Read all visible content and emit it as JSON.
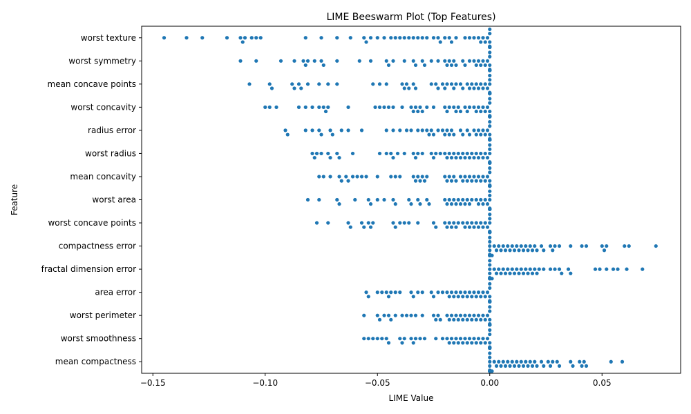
{
  "chart_data": {
    "type": "scatter",
    "subtype": "beeswarm",
    "title": "LIME Beeswarm Plot (Top Features)",
    "xlabel": "LIME Value",
    "ylabel": "Feature",
    "xlim": [
      -0.155,
      0.085
    ],
    "xticks": [
      -0.15,
      -0.1,
      -0.05,
      0.0,
      0.05
    ],
    "xtick_labels": [
      "−0.15",
      "−0.10",
      "−0.05",
      "0.00",
      "0.05"
    ],
    "grid": false,
    "legend": "none",
    "point_color": "#1f77b4",
    "categories": [
      "worst texture",
      "worst symmetry",
      "mean concave points",
      "worst concavity",
      "radius error",
      "worst radius",
      "mean concavity",
      "worst area",
      "worst concave points",
      "compactness error",
      "fractal dimension error",
      "area error",
      "worst perimeter",
      "worst smoothness",
      "mean compactness"
    ],
    "series": [
      {
        "feature": "worst texture",
        "values": [
          -0.145,
          -0.135,
          -0.128,
          -0.117,
          -0.111,
          -0.11,
          -0.109,
          -0.106,
          -0.104,
          -0.102,
          -0.082,
          -0.075,
          -0.068,
          -0.062,
          -0.056,
          -0.055,
          -0.053,
          -0.05,
          -0.047,
          -0.044,
          -0.042,
          -0.04,
          -0.038,
          -0.036,
          -0.034,
          -0.032,
          -0.03,
          -0.028,
          -0.025,
          -0.023,
          -0.022,
          -0.02,
          -0.018,
          -0.017,
          -0.015,
          -0.011,
          -0.009,
          -0.007,
          -0.005,
          -0.004,
          -0.003,
          -0.002,
          -0.001,
          0.0,
          0.0,
          0.0,
          0.0,
          0.0,
          0.0,
          0.0,
          0.0,
          0.0,
          0.0,
          0.0
        ]
      },
      {
        "feature": "worst symmetry",
        "values": [
          -0.111,
          -0.104,
          -0.093,
          -0.087,
          -0.083,
          -0.082,
          -0.081,
          -0.078,
          -0.075,
          -0.074,
          -0.068,
          -0.058,
          -0.053,
          -0.046,
          -0.045,
          -0.043,
          -0.038,
          -0.034,
          -0.033,
          -0.03,
          -0.029,
          -0.026,
          -0.023,
          -0.02,
          -0.019,
          -0.018,
          -0.017,
          -0.016,
          -0.015,
          -0.012,
          -0.011,
          -0.009,
          -0.007,
          -0.006,
          -0.005,
          -0.004,
          -0.003,
          -0.002,
          -0.001,
          0.0,
          0.0,
          0.0,
          0.0,
          0.0,
          0.0,
          0.0,
          0.0,
          0.0,
          0.0,
          0.0,
          0.0,
          0.0,
          0.0,
          0.0
        ]
      },
      {
        "feature": "mean concave points",
        "values": [
          -0.107,
          -0.098,
          -0.097,
          -0.088,
          -0.087,
          -0.085,
          -0.084,
          -0.081,
          -0.076,
          -0.072,
          -0.068,
          -0.052,
          -0.049,
          -0.046,
          -0.039,
          -0.038,
          -0.037,
          -0.036,
          -0.034,
          -0.033,
          -0.026,
          -0.024,
          -0.023,
          -0.021,
          -0.02,
          -0.019,
          -0.017,
          -0.016,
          -0.015,
          -0.013,
          -0.012,
          -0.01,
          -0.009,
          -0.008,
          -0.007,
          -0.006,
          -0.005,
          -0.004,
          -0.003,
          -0.002,
          -0.001,
          0.0,
          0.0,
          0.0,
          0.0,
          0.0,
          0.0,
          0.0,
          0.0,
          0.0,
          0.0,
          0.0,
          0.0,
          0.0
        ]
      },
      {
        "feature": "worst concavity",
        "values": [
          -0.1,
          -0.098,
          -0.095,
          -0.085,
          -0.082,
          -0.079,
          -0.076,
          -0.074,
          -0.073,
          -0.072,
          -0.063,
          -0.051,
          -0.049,
          -0.047,
          -0.045,
          -0.043,
          -0.039,
          -0.035,
          -0.034,
          -0.033,
          -0.032,
          -0.031,
          -0.03,
          -0.028,
          -0.025,
          -0.02,
          -0.019,
          -0.018,
          -0.016,
          -0.015,
          -0.014,
          -0.013,
          -0.011,
          -0.01,
          -0.009,
          -0.007,
          -0.006,
          -0.005,
          -0.004,
          -0.003,
          -0.002,
          -0.001,
          0.0,
          0.0,
          0.0,
          0.0,
          0.0,
          0.0,
          0.0,
          0.0,
          0.0,
          0.0,
          0.0,
          0.0
        ]
      },
      {
        "feature": "radius error",
        "values": [
          -0.091,
          -0.09,
          -0.082,
          -0.079,
          -0.076,
          -0.075,
          -0.071,
          -0.07,
          -0.066,
          -0.063,
          -0.057,
          -0.046,
          -0.043,
          -0.04,
          -0.037,
          -0.035,
          -0.032,
          -0.03,
          -0.028,
          -0.027,
          -0.026,
          -0.025,
          -0.023,
          -0.021,
          -0.02,
          -0.019,
          -0.018,
          -0.017,
          -0.016,
          -0.013,
          -0.012,
          -0.01,
          -0.009,
          -0.007,
          -0.006,
          -0.005,
          -0.004,
          -0.003,
          -0.002,
          -0.001,
          0.0,
          0.0,
          0.0,
          0.0,
          0.0,
          0.0,
          0.0,
          0.0,
          0.0,
          0.0,
          0.0,
          0.0,
          0.0,
          0.0
        ]
      },
      {
        "feature": "worst radius",
        "values": [
          -0.079,
          -0.078,
          -0.077,
          -0.075,
          -0.072,
          -0.071,
          -0.068,
          -0.067,
          -0.061,
          -0.049,
          -0.046,
          -0.044,
          -0.043,
          -0.041,
          -0.038,
          -0.034,
          -0.033,
          -0.032,
          -0.03,
          -0.026,
          -0.025,
          -0.024,
          -0.022,
          -0.02,
          -0.019,
          -0.018,
          -0.017,
          -0.016,
          -0.015,
          -0.014,
          -0.013,
          -0.012,
          -0.011,
          -0.01,
          -0.009,
          -0.008,
          -0.007,
          -0.006,
          -0.005,
          -0.004,
          -0.003,
          -0.002,
          -0.001,
          0.0,
          0.0,
          0.0,
          0.0,
          0.0,
          0.0,
          0.0,
          0.0,
          0.0,
          0.0,
          0.0
        ]
      },
      {
        "feature": "mean concavity",
        "values": [
          -0.076,
          -0.074,
          -0.071,
          -0.067,
          -0.066,
          -0.064,
          -0.063,
          -0.061,
          -0.059,
          -0.057,
          -0.055,
          -0.05,
          -0.044,
          -0.042,
          -0.04,
          -0.034,
          -0.033,
          -0.032,
          -0.031,
          -0.03,
          -0.029,
          -0.028,
          -0.02,
          -0.019,
          -0.018,
          -0.017,
          -0.016,
          -0.015,
          -0.013,
          -0.012,
          -0.011,
          -0.01,
          -0.009,
          -0.008,
          -0.007,
          -0.006,
          -0.005,
          -0.004,
          -0.003,
          -0.002,
          -0.001,
          0.0,
          0.0,
          0.0,
          0.0,
          0.0,
          0.0,
          0.0,
          0.0,
          0.0,
          0.0,
          0.0,
          0.0,
          0.0
        ]
      },
      {
        "feature": "worst area",
        "values": [
          -0.081,
          -0.076,
          -0.068,
          -0.067,
          -0.06,
          -0.054,
          -0.053,
          -0.05,
          -0.047,
          -0.043,
          -0.042,
          -0.036,
          -0.035,
          -0.032,
          -0.031,
          -0.028,
          -0.027,
          -0.02,
          -0.019,
          -0.018,
          -0.017,
          -0.016,
          -0.015,
          -0.014,
          -0.013,
          -0.012,
          -0.011,
          -0.01,
          -0.009,
          -0.008,
          -0.006,
          -0.005,
          -0.004,
          -0.003,
          -0.002,
          -0.001,
          0.0,
          0.0,
          0.0,
          0.0,
          0.0,
          0.0,
          0.0,
          0.0,
          0.0,
          0.0,
          0.0,
          0.0,
          0.0,
          0.0,
          0.0,
          0.0,
          0.0,
          0.0
        ]
      },
      {
        "feature": "worst concave points",
        "values": [
          -0.077,
          -0.072,
          -0.063,
          -0.062,
          -0.057,
          -0.056,
          -0.054,
          -0.053,
          -0.052,
          -0.043,
          -0.042,
          -0.04,
          -0.038,
          -0.036,
          -0.032,
          -0.025,
          -0.024,
          -0.02,
          -0.019,
          -0.018,
          -0.017,
          -0.016,
          -0.015,
          -0.014,
          -0.012,
          -0.011,
          -0.01,
          -0.009,
          -0.008,
          -0.007,
          -0.006,
          -0.005,
          -0.004,
          -0.003,
          -0.002,
          -0.001,
          0.0,
          0.0,
          0.0,
          0.0,
          0.0,
          0.0,
          0.0,
          0.0,
          0.0,
          0.0,
          0.0,
          0.0,
          0.0,
          0.0,
          0.0,
          0.0,
          0.0,
          0.0
        ]
      },
      {
        "feature": "compactness error",
        "values": [
          0.0,
          0.0,
          0.0,
          0.0,
          0.0,
          0.0,
          0.0,
          0.0,
          0.0,
          0.0,
          0.001,
          0.002,
          0.003,
          0.004,
          0.005,
          0.006,
          0.007,
          0.008,
          0.009,
          0.01,
          0.011,
          0.012,
          0.013,
          0.014,
          0.015,
          0.016,
          0.017,
          0.018,
          0.019,
          0.02,
          0.021,
          0.023,
          0.024,
          0.027,
          0.028,
          0.029,
          0.031,
          0.036,
          0.041,
          0.043,
          0.05,
          0.051,
          0.052,
          0.06,
          0.062,
          0.074
        ]
      },
      {
        "feature": "fractal dimension error",
        "values": [
          0.0,
          0.0,
          0.0,
          0.0,
          0.0,
          0.0,
          0.0,
          0.0,
          0.0,
          0.0,
          0.001,
          0.002,
          0.003,
          0.004,
          0.005,
          0.006,
          0.007,
          0.008,
          0.009,
          0.01,
          0.011,
          0.012,
          0.013,
          0.014,
          0.015,
          0.016,
          0.017,
          0.018,
          0.019,
          0.02,
          0.021,
          0.022,
          0.024,
          0.027,
          0.029,
          0.031,
          0.032,
          0.035,
          0.036,
          0.047,
          0.049,
          0.052,
          0.055,
          0.057,
          0.061,
          0.068
        ]
      },
      {
        "feature": "area error",
        "values": [
          -0.055,
          -0.054,
          -0.05,
          -0.048,
          -0.046,
          -0.045,
          -0.044,
          -0.042,
          -0.04,
          -0.035,
          -0.034,
          -0.032,
          -0.03,
          -0.026,
          -0.025,
          -0.023,
          -0.021,
          -0.019,
          -0.018,
          -0.017,
          -0.016,
          -0.015,
          -0.014,
          -0.013,
          -0.012,
          -0.011,
          -0.01,
          -0.009,
          -0.008,
          -0.007,
          -0.006,
          -0.005,
          -0.004,
          -0.003,
          -0.002,
          -0.001,
          0.0,
          0.0,
          0.0,
          0.0,
          0.0,
          0.0,
          0.0,
          0.0,
          0.0,
          0.0,
          0.0,
          0.0,
          0.0,
          0.0,
          0.0,
          0.0,
          0.0,
          0.0
        ]
      },
      {
        "feature": "worst perimeter",
        "values": [
          -0.056,
          -0.05,
          -0.049,
          -0.047,
          -0.045,
          -0.044,
          -0.042,
          -0.039,
          -0.037,
          -0.035,
          -0.033,
          -0.03,
          -0.025,
          -0.024,
          -0.023,
          -0.022,
          -0.019,
          -0.018,
          -0.017,
          -0.016,
          -0.015,
          -0.014,
          -0.013,
          -0.012,
          -0.011,
          -0.01,
          -0.009,
          -0.008,
          -0.007,
          -0.006,
          -0.005,
          -0.004,
          -0.003,
          -0.002,
          -0.001,
          0.0,
          0.0,
          0.0,
          0.0,
          0.0,
          0.0,
          0.0,
          0.0,
          0.0,
          0.0,
          0.0,
          0.0,
          0.0,
          0.0,
          0.0,
          0.0,
          0.0,
          0.0,
          0.0
        ]
      },
      {
        "feature": "worst smoothness",
        "values": [
          -0.056,
          -0.054,
          -0.052,
          -0.05,
          -0.048,
          -0.046,
          -0.045,
          -0.04,
          -0.039,
          -0.038,
          -0.035,
          -0.034,
          -0.033,
          -0.031,
          -0.029,
          -0.024,
          -0.021,
          -0.019,
          -0.018,
          -0.017,
          -0.016,
          -0.015,
          -0.014,
          -0.013,
          -0.012,
          -0.011,
          -0.01,
          -0.009,
          -0.008,
          -0.007,
          -0.006,
          -0.005,
          -0.004,
          -0.003,
          -0.002,
          -0.001,
          0.0,
          0.0,
          0.0,
          0.0,
          0.0,
          0.0,
          0.0,
          0.0,
          0.0,
          0.0,
          0.0,
          0.0,
          0.0,
          0.0,
          0.0,
          0.0,
          0.0,
          0.0
        ]
      },
      {
        "feature": "mean compactness",
        "values": [
          0.0,
          0.0,
          0.0,
          0.0,
          0.0,
          0.0,
          0.0,
          0.0,
          0.0,
          0.0,
          0.001,
          0.002,
          0.003,
          0.004,
          0.005,
          0.006,
          0.007,
          0.008,
          0.009,
          0.01,
          0.011,
          0.012,
          0.013,
          0.014,
          0.015,
          0.016,
          0.017,
          0.018,
          0.019,
          0.02,
          0.021,
          0.023,
          0.024,
          0.026,
          0.027,
          0.028,
          0.03,
          0.031,
          0.036,
          0.037,
          0.04,
          0.041,
          0.042,
          0.043,
          0.054,
          0.059
        ]
      }
    ]
  }
}
